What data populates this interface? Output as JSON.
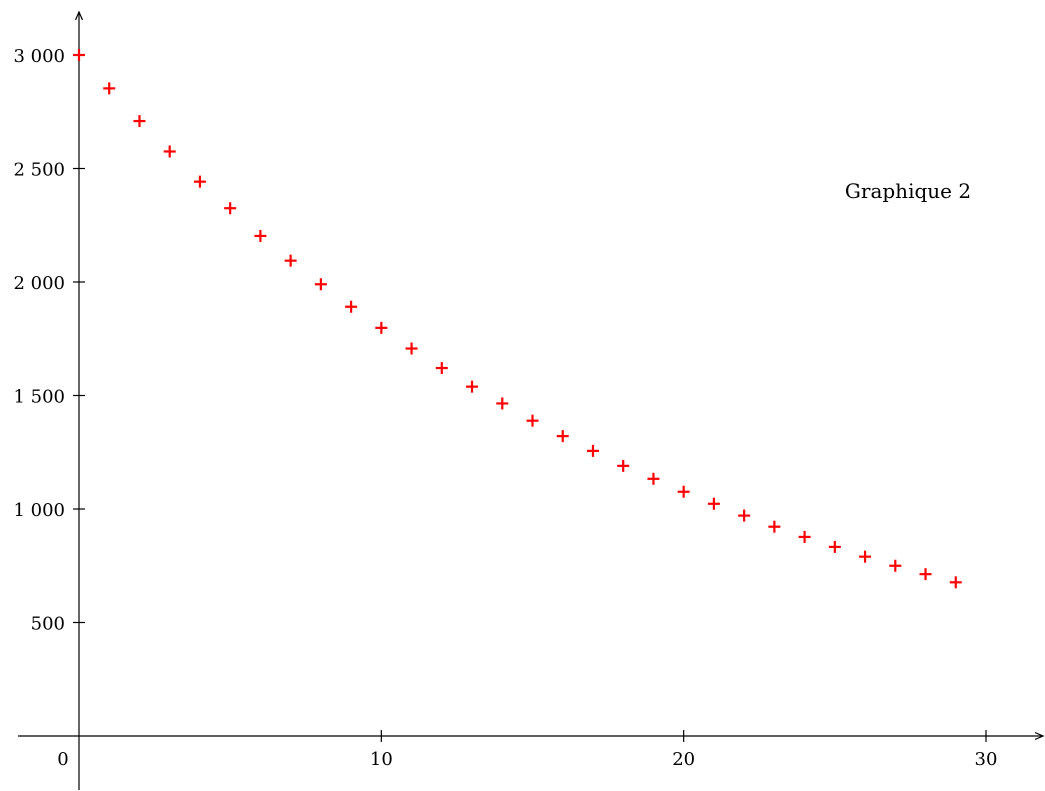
{
  "chart_data": {
    "type": "scatter",
    "title": "",
    "xlabel": "",
    "ylabel": "",
    "xlim": [
      0,
      30
    ],
    "ylim": [
      0,
      3000
    ],
    "x_ticks": [
      10,
      20,
      30
    ],
    "y_ticks": [
      500,
      1000,
      1500,
      2000,
      2500,
      3000
    ],
    "x_tick_labels": [
      "10",
      "20",
      "30"
    ],
    "y_tick_labels": [
      "500",
      "1 000",
      "1 500",
      "2 000",
      "2 500",
      "3 000"
    ],
    "origin_label": "0",
    "grid": false,
    "marker": "+",
    "marker_color": "#ff0000",
    "axis_color": "#000000",
    "annotation": "Graphique 2",
    "series": [
      {
        "x": [
          0,
          1,
          2,
          3,
          4,
          5,
          6,
          7,
          8,
          9,
          10,
          11,
          12,
          13,
          14,
          15,
          16,
          17,
          18,
          19,
          20,
          21,
          22,
          23,
          24,
          25,
          26,
          27,
          28,
          29
        ],
        "y": [
          3000,
          2853,
          2709,
          2575,
          2442,
          2325,
          2203,
          2094,
          1990,
          1891,
          1798,
          1707,
          1621,
          1539,
          1465,
          1389,
          1321,
          1256,
          1190,
          1133,
          1076,
          1023,
          971,
          922,
          877,
          833,
          790,
          750,
          713,
          677
        ]
      }
    ]
  }
}
